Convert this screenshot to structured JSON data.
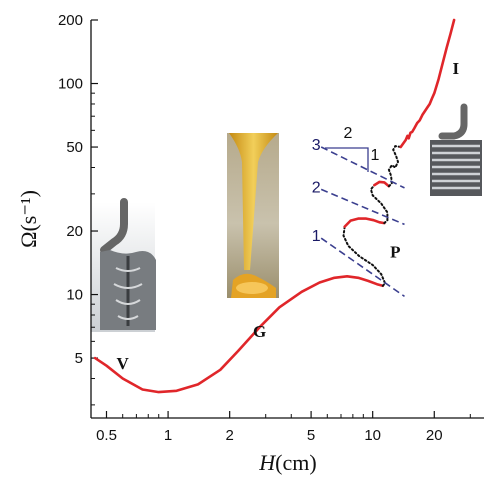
{
  "chart_data": {
    "type": "line",
    "xscale": "log",
    "yscale": "log",
    "xlim": [
      0.42,
      35
    ],
    "ylim": [
      2.6,
      200
    ],
    "xlabel_symbol": "H",
    "xlabel_unit": "(cm)",
    "ylabel_symbol": "Ω",
    "ylabel_unit": "(s⁻¹)",
    "xticks": [
      {
        "value": 0.5,
        "label": "0.5"
      },
      {
        "value": 1,
        "label": "1"
      },
      {
        "value": 2,
        "label": "2"
      },
      {
        "value": 5,
        "label": "5"
      },
      {
        "value": 10,
        "label": "10"
      },
      {
        "value": 20,
        "label": "20"
      }
    ],
    "yticks": [
      {
        "value": 5,
        "label": "5"
      },
      {
        "value": 10,
        "label": "10"
      },
      {
        "value": 20,
        "label": "20"
      },
      {
        "value": 50,
        "label": "50"
      },
      {
        "value": 100,
        "label": "100"
      },
      {
        "value": 200,
        "label": "200"
      }
    ],
    "colors": {
      "stable": "#e0262a",
      "unstable": "#111111",
      "asymptote": "#3b3f8f",
      "axis": "#111111"
    },
    "series": [
      {
        "style": "solid-red",
        "points": [
          [
            0.44,
            5.0
          ],
          [
            0.5,
            4.6
          ],
          [
            0.6,
            4.0
          ],
          [
            0.75,
            3.55
          ],
          [
            0.9,
            3.45
          ],
          [
            1.1,
            3.5
          ],
          [
            1.4,
            3.75
          ],
          [
            1.8,
            4.4
          ],
          [
            2.2,
            5.4
          ],
          [
            2.8,
            7.0
          ],
          [
            3.5,
            8.7
          ],
          [
            4.5,
            10.3
          ],
          [
            5.5,
            11.4
          ],
          [
            6.5,
            12.0
          ],
          [
            7.5,
            12.2
          ],
          [
            8.5,
            12.0
          ],
          [
            9.5,
            11.6
          ],
          [
            10.5,
            11.2
          ],
          [
            11.2,
            11.0
          ]
        ]
      },
      {
        "style": "dotted-black",
        "points": [
          [
            11.2,
            11.0
          ],
          [
            11.5,
            11.3
          ],
          [
            11.0,
            12.5
          ],
          [
            10.0,
            13.8
          ],
          [
            8.6,
            15.2
          ],
          [
            7.6,
            17.0
          ],
          [
            7.2,
            19.0
          ],
          [
            7.3,
            21.0
          ]
        ]
      },
      {
        "style": "solid-red",
        "points": [
          [
            7.3,
            21.0
          ],
          [
            7.8,
            22.4
          ],
          [
            8.5,
            22.9
          ],
          [
            9.3,
            22.9
          ],
          [
            10.1,
            22.5
          ],
          [
            10.8,
            22.0
          ],
          [
            11.4,
            21.8
          ]
        ]
      },
      {
        "style": "dotted-black",
        "points": [
          [
            11.4,
            21.8
          ],
          [
            11.8,
            22.5
          ],
          [
            11.8,
            24.5
          ],
          [
            11.0,
            27.0
          ],
          [
            10.0,
            29.5
          ],
          [
            9.8,
            31.5
          ],
          [
            10.2,
            33.0
          ]
        ]
      },
      {
        "style": "solid-red",
        "points": [
          [
            10.2,
            33.0
          ],
          [
            10.8,
            34.2
          ],
          [
            11.4,
            34.0
          ],
          [
            12.0,
            32.6
          ]
        ]
      },
      {
        "style": "dotted-black",
        "points": [
          [
            12.0,
            32.6
          ],
          [
            12.4,
            33.6
          ],
          [
            12.3,
            36.5
          ],
          [
            12.0,
            39.0
          ],
          [
            12.4,
            41.0
          ],
          [
            12.9,
            40.0
          ],
          [
            13.3,
            42.5
          ],
          [
            13.0,
            45.5
          ],
          [
            12.6,
            48.5
          ],
          [
            12.9,
            50.5
          ],
          [
            13.7,
            50.0
          ]
        ]
      },
      {
        "style": "solid-red",
        "points": [
          [
            13.7,
            50.0
          ],
          [
            14.1,
            52.0
          ],
          [
            14.5,
            54.0
          ],
          [
            14.8,
            56.5
          ],
          [
            15.0,
            55.0
          ],
          [
            15.3,
            58.5
          ],
          [
            15.6,
            59.0
          ],
          [
            16.0,
            61.5
          ],
          [
            16.5,
            65.0
          ],
          [
            17.0,
            67.0
          ],
          [
            17.5,
            71.0
          ],
          [
            18.0,
            74.0
          ],
          [
            18.5,
            77.0
          ],
          [
            19.0,
            80.0
          ],
          [
            19.5,
            85.0
          ],
          [
            20.0,
            90.0
          ],
          [
            21.0,
            105.0
          ],
          [
            22.0,
            125.0
          ],
          [
            23.0,
            148.0
          ],
          [
            24.0,
            172.0
          ],
          [
            25.0,
            200.0
          ]
        ]
      },
      {
        "style": "dashed-blue",
        "label": "1",
        "points": [
          [
            5.6,
            18.5
          ],
          [
            14.3,
            9.8
          ]
        ]
      },
      {
        "style": "dashed-blue",
        "label": "2",
        "points": [
          [
            5.6,
            31.5
          ],
          [
            14.3,
            21.5
          ]
        ]
      },
      {
        "style": "dashed-blue",
        "label": "3",
        "points": [
          [
            5.6,
            50.0
          ],
          [
            14.3,
            32.0
          ]
        ]
      }
    ],
    "annotations": [
      {
        "text": "V",
        "x": 0.6,
        "y": 4.45
      },
      {
        "text": "G",
        "x": 2.8,
        "y": 6.3
      },
      {
        "text": "P",
        "x": 12.9,
        "y": 15.0
      },
      {
        "text": "I",
        "x": 25.5,
        "y": 111.0
      }
    ],
    "slope_triangle": {
      "horizontal_label": "2",
      "vertical_label": "1"
    },
    "insets": [
      {
        "name": "viscous-coiling-photo",
        "regime": "V"
      },
      {
        "name": "gravitational-coiling-photo",
        "regime": "G"
      },
      {
        "name": "inertial-coiling-photo",
        "regime": "I"
      }
    ]
  }
}
